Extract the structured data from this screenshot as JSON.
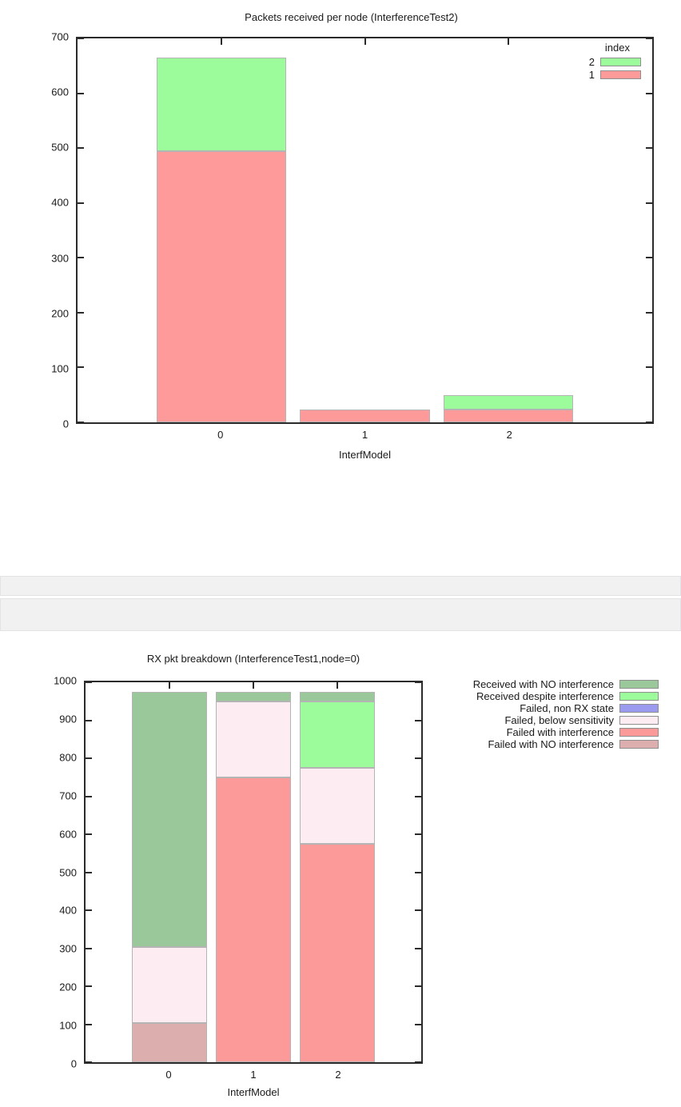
{
  "page": {
    "background": "#ffffff"
  },
  "chart_data": [
    {
      "type": "bar",
      "stacked": true,
      "title": "Packets received per node (InterferenceTest2)",
      "xlabel": "InterfModel",
      "categories": [
        "0",
        "1",
        "2"
      ],
      "ylim": [
        0,
        700
      ],
      "yticks": [
        0,
        100,
        200,
        300,
        400,
        500,
        600,
        700
      ],
      "grid": false,
      "legend": {
        "title": "index",
        "position": "inside-top-right"
      },
      "series": [
        {
          "name": "1",
          "color": "#ff9a9a",
          "values": [
            495,
            23,
            23
          ]
        },
        {
          "name": "2",
          "color": "#9cfc9c",
          "values": [
            170,
            0,
            27
          ]
        }
      ],
      "bar_totals": [
        665,
        23,
        50
      ]
    },
    {
      "type": "bar",
      "stacked": true,
      "title": "RX pkt breakdown (InterferenceTest1,node=0)",
      "xlabel": "InterfModel",
      "categories": [
        "0",
        "1",
        "2"
      ],
      "ylim": [
        0,
        1000
      ],
      "yticks": [
        0,
        100,
        200,
        300,
        400,
        500,
        600,
        700,
        800,
        900,
        1000
      ],
      "grid": false,
      "legend": {
        "title": "",
        "position": "outside-right"
      },
      "series": [
        {
          "name": "Failed with NO interference",
          "color": "#dcaeae",
          "values": [
            103,
            0,
            0
          ]
        },
        {
          "name": "Failed with interference",
          "color": "#fc9a9a",
          "values": [
            0,
            750,
            575
          ]
        },
        {
          "name": "Failed, below sensitivity",
          "color": "#fdecf2",
          "values": [
            200,
            200,
            200
          ]
        },
        {
          "name": "Failed, non RX state",
          "color": "#9a9aee",
          "values": [
            0,
            0,
            0
          ]
        },
        {
          "name": "Received despite interference",
          "color": "#9cfc9c",
          "values": [
            0,
            0,
            175
          ]
        },
        {
          "name": "Received with NO interference",
          "color": "#9bc89b",
          "values": [
            672,
            25,
            25
          ]
        }
      ],
      "bar_totals": [
        975,
        975,
        975
      ]
    }
  ],
  "separator": {
    "row_count": 2,
    "background": "#f1f1f2",
    "border": "#e3e3e5"
  },
  "colors": {
    "axis": "#2b2b2b",
    "bar_border": "#b4b4b4",
    "text": "#1a1a1a"
  }
}
